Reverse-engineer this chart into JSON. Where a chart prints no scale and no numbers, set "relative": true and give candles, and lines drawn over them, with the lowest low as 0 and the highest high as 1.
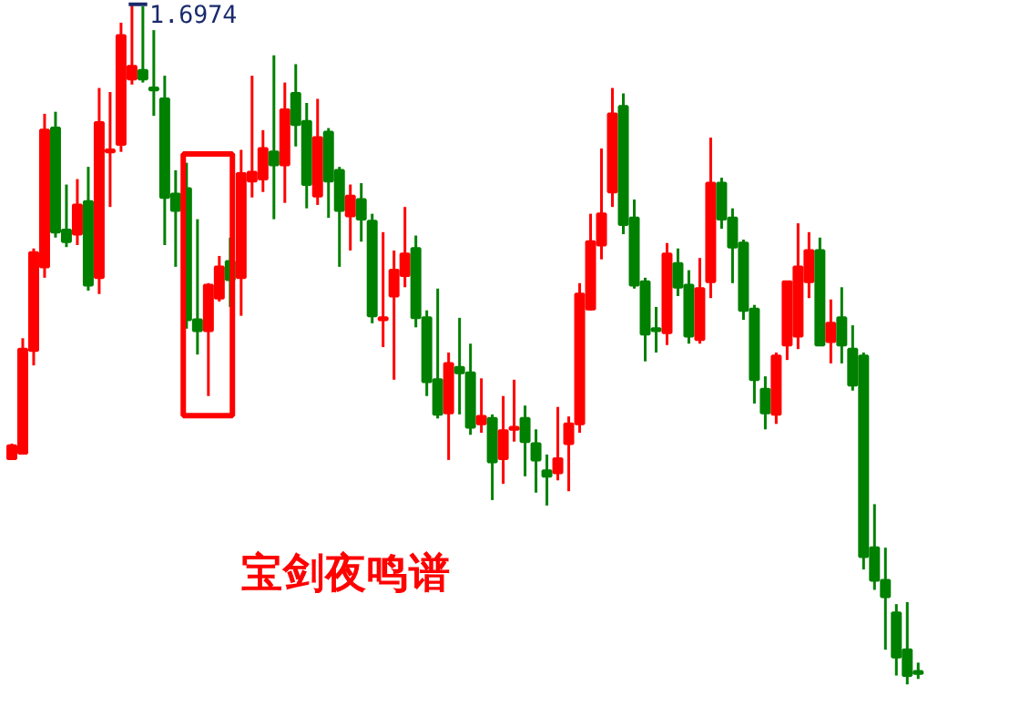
{
  "chart_data": {
    "type": "candlestick",
    "relative": true,
    "categories": [
      null,
      null,
      null,
      null,
      null,
      null,
      null,
      null,
      null,
      null,
      null,
      null,
      null,
      null,
      null,
      null,
      null,
      null,
      null,
      null,
      null,
      null,
      null,
      null,
      null,
      null,
      null,
      null,
      null,
      null,
      null,
      null,
      null,
      null,
      null,
      null,
      null,
      null,
      null,
      null,
      null,
      null,
      null,
      null,
      null,
      null,
      null,
      null,
      null,
      null,
      null,
      null,
      null,
      null,
      null,
      null,
      null,
      null,
      null,
      null,
      null,
      null,
      null,
      null,
      null,
      null,
      null,
      null,
      null,
      null,
      null,
      null,
      null,
      null,
      null,
      null,
      null,
      null,
      null,
      null,
      null,
      null,
      null,
      null
    ],
    "ohlc": [
      [
        0.332,
        0.354,
        0.33,
        0.351
      ],
      [
        0.34,
        0.509,
        0.338,
        0.493
      ],
      [
        0.491,
        0.641,
        0.469,
        0.635
      ],
      [
        0.614,
        0.839,
        0.598,
        0.815
      ],
      [
        0.818,
        0.842,
        0.657,
        0.665
      ],
      [
        0.668,
        0.735,
        0.643,
        0.651
      ],
      [
        0.662,
        0.743,
        0.646,
        0.705
      ],
      [
        0.71,
        0.761,
        0.579,
        0.587
      ],
      [
        0.598,
        0.877,
        0.574,
        0.826
      ],
      [
        0.783,
        0.871,
        0.702,
        0.786
      ],
      [
        0.794,
        0.973,
        0.783,
        0.954
      ],
      [
        0.89,
        1,
        0.882,
        0.909
      ],
      [
        0.903,
        0.997,
        0.885,
        0.89
      ],
      [
        0.877,
        0.962,
        0.836,
        0.874
      ],
      [
        0.861,
        0.895,
        0.646,
        0.716
      ],
      [
        0.721,
        0.756,
        0.614,
        0.697
      ],
      [
        0.729,
        0.767,
        0.523,
        0.536
      ],
      [
        0.536,
        0.684,
        0.485,
        0.52
      ],
      [
        0.52,
        0.59,
        0.424,
        0.587
      ],
      [
        0.568,
        0.63,
        0.563,
        0.614
      ],
      [
        0.622,
        0.657,
        0.555,
        0.595
      ],
      [
        0.598,
        0.786,
        0.542,
        0.751
      ],
      [
        0.74,
        0.895,
        0.716,
        0.753
      ],
      [
        0.743,
        0.815,
        0.724,
        0.788
      ],
      [
        0.783,
        0.925,
        0.684,
        0.764
      ],
      [
        0.764,
        0.885,
        0.708,
        0.845
      ],
      [
        0.869,
        0.912,
        0.791,
        0.823
      ],
      [
        0.828,
        0.855,
        0.7,
        0.735
      ],
      [
        0.718,
        0.861,
        0.705,
        0.804
      ],
      [
        0.812,
        0.818,
        0.686,
        0.74
      ],
      [
        0.756,
        0.761,
        0.614,
        0.697
      ],
      [
        0.689,
        0.735,
        0.638,
        0.718
      ],
      [
        0.713,
        0.737,
        0.651,
        0.684
      ],
      [
        0.681,
        0.692,
        0.531,
        0.542
      ],
      [
        0.536,
        0.665,
        0.496,
        0.539
      ],
      [
        0.571,
        0.638,
        0.448,
        0.609
      ],
      [
        0.601,
        0.702,
        0.584,
        0.633
      ],
      [
        0.641,
        0.66,
        0.525,
        0.539
      ],
      [
        0.539,
        0.55,
        0.424,
        0.445
      ],
      [
        0.448,
        0.582,
        0.391,
        0.397
      ],
      [
        0.399,
        0.488,
        0.33,
        0.472
      ],
      [
        0.466,
        0.539,
        0.397,
        0.458
      ],
      [
        0.458,
        0.501,
        0.367,
        0.378
      ],
      [
        0.383,
        0.45,
        0.37,
        0.394
      ],
      [
        0.391,
        0.397,
        0.271,
        0.327
      ],
      [
        0.332,
        0.424,
        0.295,
        0.373
      ],
      [
        0.375,
        0.448,
        0.357,
        0.378
      ],
      [
        0.391,
        0.41,
        0.306,
        0.357
      ],
      [
        0.354,
        0.375,
        0.282,
        0.33
      ],
      [
        0.314,
        0.338,
        0.263,
        0.306
      ],
      [
        0.311,
        0.408,
        0.3,
        0.332
      ],
      [
        0.354,
        0.394,
        0.284,
        0.383
      ],
      [
        0.383,
        0.59,
        0.37,
        0.574
      ],
      [
        0.552,
        0.692,
        0.55,
        0.651
      ],
      [
        0.646,
        0.788,
        0.625,
        0.692
      ],
      [
        0.724,
        0.877,
        0.702,
        0.839
      ],
      [
        0.85,
        0.869,
        0.662,
        0.676
      ],
      [
        0.686,
        0.713,
        0.582,
        0.587
      ],
      [
        0.592,
        0.598,
        0.475,
        0.515
      ],
      [
        0.523,
        0.555,
        0.488,
        0.52
      ],
      [
        0.517,
        0.649,
        0.499,
        0.633
      ],
      [
        0.619,
        0.641,
        0.571,
        0.584
      ],
      [
        0.587,
        0.609,
        0.501,
        0.512
      ],
      [
        0.507,
        0.627,
        0.501,
        0.582
      ],
      [
        0.592,
        0.804,
        0.568,
        0.737
      ],
      [
        0.737,
        0.745,
        0.67,
        0.684
      ],
      [
        0.686,
        0.7,
        0.59,
        0.643
      ],
      [
        0.649,
        0.654,
        0.536,
        0.55
      ],
      [
        0.552,
        0.558,
        0.413,
        0.448
      ],
      [
        0.434,
        0.453,
        0.375,
        0.399
      ],
      [
        0.397,
        0.488,
        0.383,
        0.483
      ],
      [
        0.499,
        0.592,
        0.477,
        0.592
      ],
      [
        0.512,
        0.678,
        0.493,
        0.614
      ],
      [
        0.592,
        0.665,
        0.568,
        0.638
      ],
      [
        0.638,
        0.657,
        0.499,
        0.499
      ],
      [
        0.504,
        0.566,
        0.472,
        0.531
      ],
      [
        0.539,
        0.584,
        0.472,
        0.499
      ],
      [
        0.493,
        0.528,
        0.432,
        0.44
      ],
      [
        0.483,
        0.488,
        0.169,
        0.188
      ],
      [
        0.201,
        0.265,
        0.139,
        0.153
      ],
      [
        0.153,
        0.201,
        0.051,
        0.129
      ],
      [
        0.105,
        0.118,
        0.013,
        0.04
      ],
      [
        0.051,
        0.121,
        0,
        0.013
      ],
      [
        0.019,
        0.032,
        0.008,
        0.016
      ]
    ],
    "annotations": [
      "1.6974",
      "宝剑夜鸣谱"
    ]
  }
}
